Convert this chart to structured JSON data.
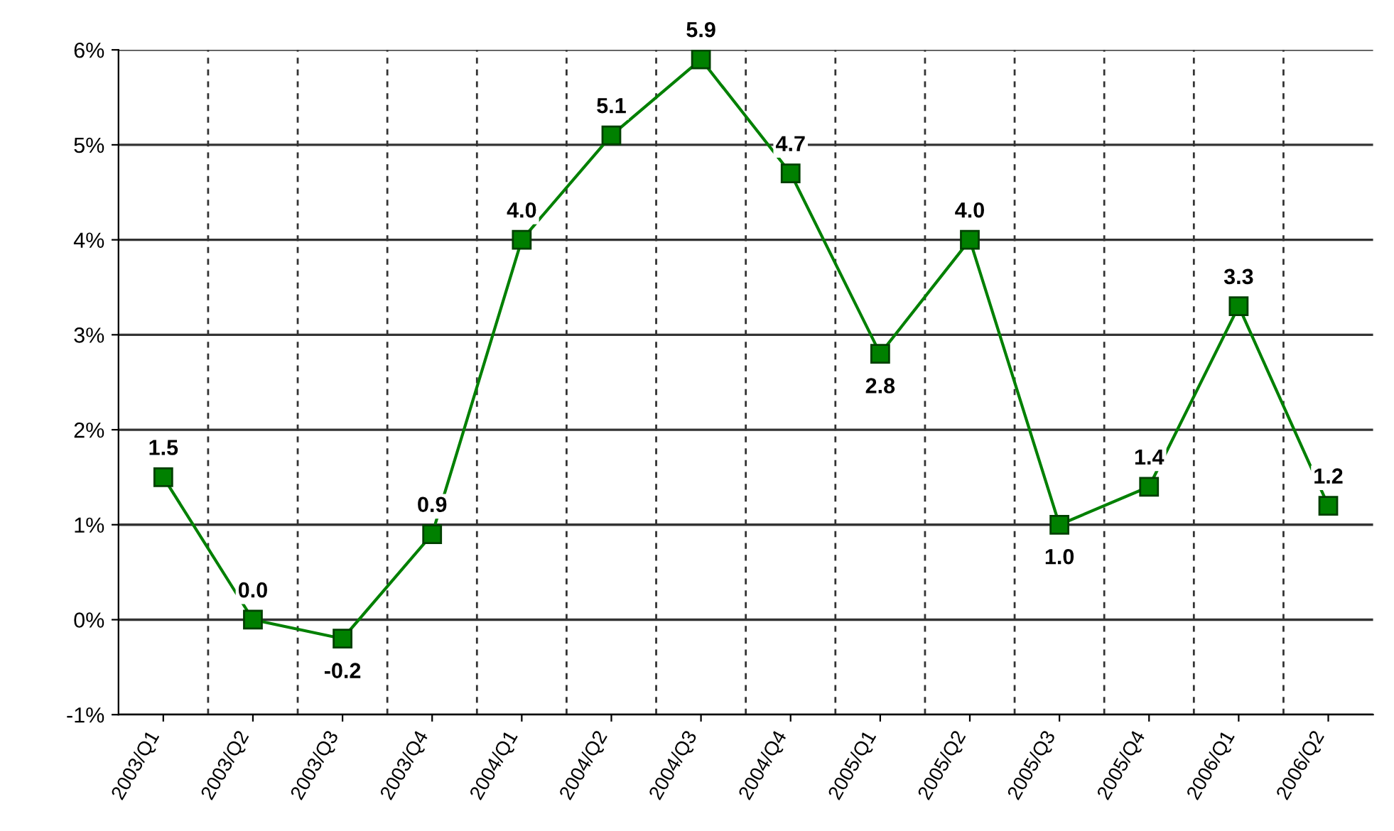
{
  "chart_data": {
    "type": "line",
    "categories": [
      "2003/Q1",
      "2003/Q2",
      "2003/Q3",
      "2003/Q4",
      "2004/Q1",
      "2004/Q2",
      "2004/Q3",
      "2004/Q4",
      "2005/Q1",
      "2005/Q2",
      "2005/Q3",
      "2005/Q4",
      "2006/Q1",
      "2006/Q2"
    ],
    "series": [
      {
        "color": "#008000",
        "values": [
          1.5,
          0.0,
          -0.2,
          0.9,
          4.0,
          5.1,
          5.9,
          4.7,
          2.8,
          4.0,
          1.0,
          1.4,
          3.3,
          1.2
        ],
        "value_labels": [
          "1.5",
          "0.0",
          "-0.2",
          "0.9",
          "4.0",
          "5.1",
          "5.9",
          "4.7",
          "2.8",
          "4.0",
          "1.0",
          "1.4",
          "3.3",
          "1.2"
        ]
      }
    ],
    "ylim": [
      -1,
      6
    ],
    "yticks": [
      {
        "value": -1,
        "label": "-1%"
      },
      {
        "value": 0,
        "label": "0%"
      },
      {
        "value": 1,
        "label": "1%"
      },
      {
        "value": 2,
        "label": "2%"
      },
      {
        "value": 3,
        "label": "3%"
      },
      {
        "value": 4,
        "label": "4%"
      },
      {
        "value": 5,
        "label": "5%"
      },
      {
        "value": 6,
        "label": "6%"
      }
    ],
    "grid": true,
    "marker": "square",
    "line_style": "solid",
    "legend": false
  }
}
